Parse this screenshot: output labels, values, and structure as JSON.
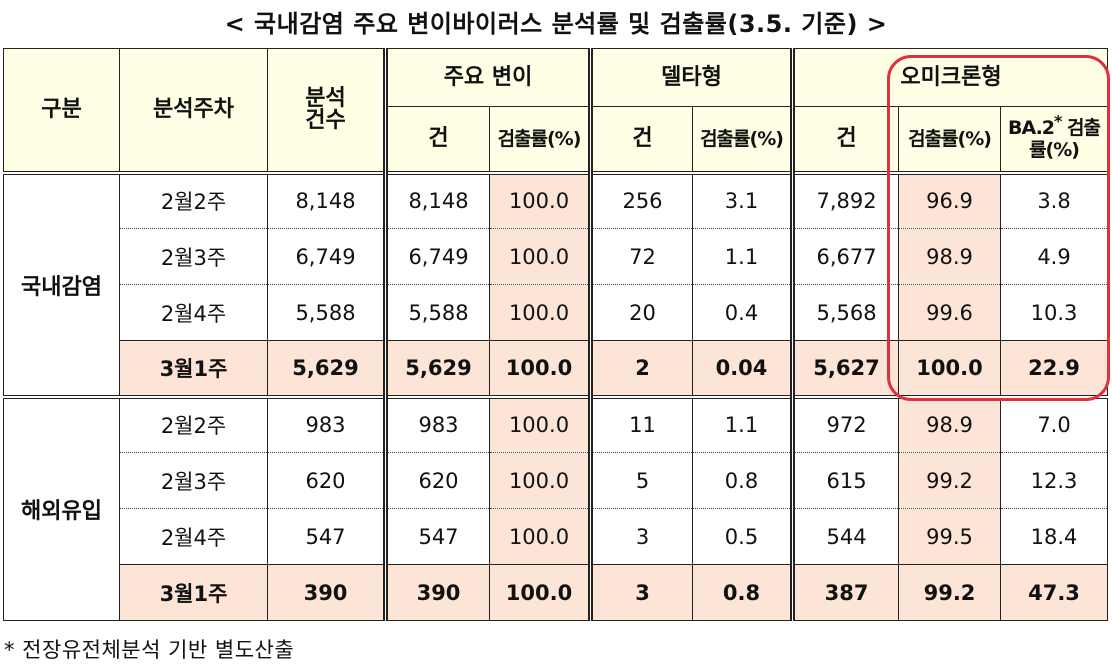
{
  "title": "< 국내감염 주요 변이바이러스 분석률 및 검출률(3.5. 기준) >",
  "headers": {
    "category": "구분",
    "week": "분석주차",
    "analyzed": "분석\n건수",
    "major_variant": "주요 변이",
    "delta": "델타형",
    "omicron": "오미크론형",
    "count": "건",
    "rate": "검출률(%)",
    "ba2_prefix": "BA.2",
    "ba2_star": "*",
    "ba2_suffix": " 검출률(%)"
  },
  "groups": [
    {
      "name": "국내감염",
      "rows": [
        {
          "week": "2월2주",
          "analyzed": "8,148",
          "major_count": "8,148",
          "major_rate": "100.0",
          "delta_count": "256",
          "delta_rate": "3.1",
          "omicron_count": "7,892",
          "omicron_rate": "96.9",
          "ba2_rate": "3.8"
        },
        {
          "week": "2월3주",
          "analyzed": "6,749",
          "major_count": "6,749",
          "major_rate": "100.0",
          "delta_count": "72",
          "delta_rate": "1.1",
          "omicron_count": "6,677",
          "omicron_rate": "98.9",
          "ba2_rate": "4.9"
        },
        {
          "week": "2월4주",
          "analyzed": "5,588",
          "major_count": "5,588",
          "major_rate": "100.0",
          "delta_count": "20",
          "delta_rate": "0.4",
          "omicron_count": "5,568",
          "omicron_rate": "99.6",
          "ba2_rate": "10.3"
        },
        {
          "week": "3월1주",
          "analyzed": "5,629",
          "major_count": "5,629",
          "major_rate": "100.0",
          "delta_count": "2",
          "delta_rate": "0.04",
          "omicron_count": "5,627",
          "omicron_rate": "100.0",
          "ba2_rate": "22.9"
        }
      ]
    },
    {
      "name": "해외유입",
      "rows": [
        {
          "week": "2월2주",
          "analyzed": "983",
          "major_count": "983",
          "major_rate": "100.0",
          "delta_count": "11",
          "delta_rate": "1.1",
          "omicron_count": "972",
          "omicron_rate": "98.9",
          "ba2_rate": "7.0"
        },
        {
          "week": "2월3주",
          "analyzed": "620",
          "major_count": "620",
          "major_rate": "100.0",
          "delta_count": "5",
          "delta_rate": "0.8",
          "omicron_count": "615",
          "omicron_rate": "99.2",
          "ba2_rate": "12.3"
        },
        {
          "week": "2월4주",
          "analyzed": "547",
          "major_count": "547",
          "major_rate": "100.0",
          "delta_count": "3",
          "delta_rate": "0.5",
          "omicron_count": "544",
          "omicron_rate": "99.5",
          "ba2_rate": "18.4"
        },
        {
          "week": "3월1주",
          "analyzed": "390",
          "major_count": "390",
          "major_rate": "100.0",
          "delta_count": "3",
          "delta_rate": "0.8",
          "omicron_count": "387",
          "omicron_rate": "99.2",
          "ba2_rate": "47.3"
        }
      ]
    }
  ],
  "footnote": "* 전장유전체분석 기반 별도산출",
  "colors": {
    "header_bg": "#FFFFE5",
    "highlight_cell_bg": "#FCE4D6",
    "callout_border": "#e0303c"
  }
}
